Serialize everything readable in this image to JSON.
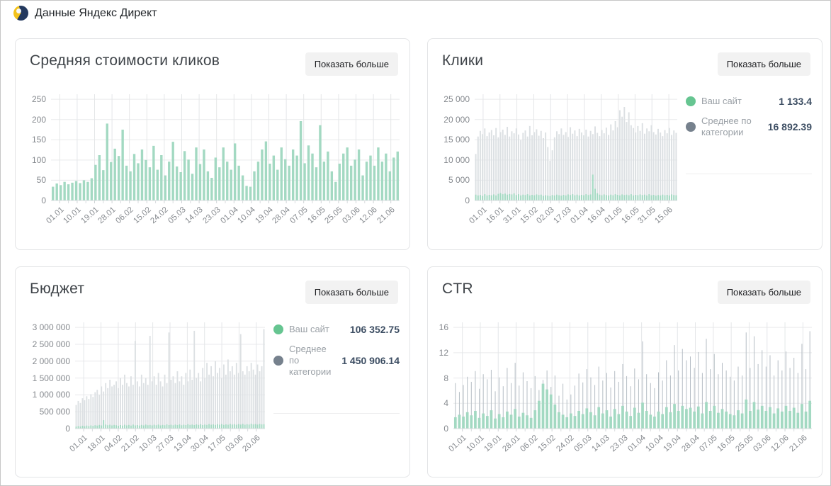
{
  "header": {
    "title": "Данные Яндекс Директ"
  },
  "colors": {
    "site_green_bar": "#a3d9c2",
    "category_gray_bar": "#dce0e3",
    "ctr_gray_bar": "#b6bec5",
    "grid_h": "#e9eaec",
    "grid_v": "#e4e6e8",
    "axis_text": "#85898e",
    "legend_dot_green": "#66c591",
    "legend_dot_gray": "#76818d"
  },
  "panels": [
    {
      "title": "Средняя стоимости кликов",
      "show_more": "Показать больше",
      "chart_data": {
        "type": "bar",
        "title": "Средняя стоимости кликов",
        "x_tick_labels": [
          "01.01",
          "10.01",
          "19.01",
          "28.01",
          "06.02",
          "15.02",
          "24.02",
          "05.03",
          "14.03",
          "23.03",
          "01.04",
          "10.04",
          "19.04",
          "28.04",
          "07.05",
          "16.05",
          "25.05",
          "03.06",
          "12.06",
          "21.06"
        ],
        "ytick_values": [
          0,
          50,
          100,
          150,
          200,
          250
        ],
        "ytick_labels": [
          "0",
          "50",
          "100",
          "150",
          "200",
          "250"
        ],
        "ylim": [
          0,
          250
        ],
        "grid": true,
        "legend_position": "none",
        "series": [
          {
            "name": "Ваш сайт",
            "color": "#a3d9c2",
            "bar_frac": 0.62,
            "values": [
              34,
              42,
              38,
              46,
              40,
              44,
              48,
              43,
              50,
              46,
              55,
              88,
              112,
              75,
              190,
              95,
              128,
              110,
              175,
              86,
              72,
              115,
              92,
              126,
              100,
              82,
              135,
              76,
              112,
              62,
              96,
              145,
              84,
              70,
              122,
              101,
              66,
              131,
              90,
              126,
              72,
              56,
              106,
              82,
              131,
              96,
              76,
              141,
              86,
              62,
              36,
              34,
              72,
              96,
              126,
              146,
              91,
              111,
              76,
              131,
              102,
              86,
              126,
              111,
              196,
              92,
              136,
              116,
              82,
              186,
              96,
              121,
              72,
              46,
              91,
              116,
              131,
              86,
              101,
              126,
              62,
              96,
              111,
              86,
              131,
              96,
              116,
              72,
              106,
              121
            ]
          }
        ]
      }
    },
    {
      "title": "Клики",
      "show_more": "Показать больше",
      "legend": {
        "items": [
          {
            "label": "Ваш сайт",
            "value": "1 133.4",
            "color": "#66c591"
          },
          {
            "label": "Среднее по категории",
            "value": "16 892.39",
            "color": "#76818d"
          }
        ]
      },
      "chart_data": {
        "type": "bar",
        "title": "Клики",
        "x_tick_labels": [
          "01.01",
          "16.01",
          "31.01",
          "15.02",
          "02.03",
          "17.03",
          "01.04",
          "16.04",
          "01.05",
          "16.05",
          "31.05",
          "15.06"
        ],
        "ytick_values": [
          0,
          5000,
          10000,
          15000,
          20000,
          25000
        ],
        "ytick_labels": [
          "0",
          "5 000",
          "10 000",
          "15 000",
          "20 000",
          "25 000"
        ],
        "ylim": [
          0,
          25000
        ],
        "grid": true,
        "legend_position": "right",
        "series": [
          {
            "name": "Среднее по категории",
            "color": "#dce0e3",
            "bar_frac": 0.62,
            "values": [
              11500,
              15800,
              17200,
              16400,
              17800,
              15900,
              16800,
              17400,
              16100,
              17900,
              15600,
              16900,
              17500,
              16200,
              18200,
              15800,
              17100,
              16600,
              17800,
              16300,
              14900,
              16700,
              17300,
              15800,
              18400,
              16100,
              16900,
              17600,
              16000,
              17200,
              15400,
              16800,
              13200,
              9800,
              12400,
              15600,
              17100,
              16400,
              17800,
              16200,
              16900,
              15700,
              18100,
              16500,
              17300,
              15900,
              17700,
              16800,
              16100,
              17500,
              15800,
              17200,
              16400,
              18300,
              16700,
              15900,
              17400,
              16600,
              18000,
              16200,
              18800,
              17300,
              19600,
              18100,
              22300,
              20700,
              23100,
              19400,
              21800,
              18600,
              17900,
              16800,
              18400,
              17200,
              19100,
              16500,
              17800,
              17100,
              18600,
              16900,
              16300,
              17700,
              16800,
              15900,
              17400,
              16600,
              17900,
              16200,
              17300,
              16700
            ]
          },
          {
            "name": "Ваш сайт",
            "color": "#a3d9c2",
            "bar_frac": 0.62,
            "values": [
              1450,
              1250,
              1350,
              1150,
              1550,
              1250,
              1400,
              1300,
              1500,
              1250,
              1650,
              1850,
              1550,
              1700,
              1450,
              1600,
              1500,
              1750,
              1350,
              1550,
              1250,
              1450,
              1350,
              1550,
              1250,
              1400,
              1300,
              1500,
              1350,
              1450,
              1150,
              1300,
              1200,
              1100,
              1350,
              1250,
              1450,
              1300,
              1200,
              1400,
              1250,
              1500,
              1350,
              1550,
              1300,
              1450,
              1250,
              1400,
              1300,
              1550,
              1350,
              1500,
              6400,
              2900,
              1800,
              1450,
              1300,
              1500,
              1350,
              1250,
              1450,
              1300,
              1550,
              1400,
              1250,
              1500,
              1350,
              1450,
              1300,
              1550,
              1250,
              1400,
              1300,
              1500,
              1350,
              1450,
              1250,
              1550,
              1300,
              1400,
              1200,
              1350,
              1250,
              1450,
              1300,
              1400,
              1250,
              1500,
              1350,
              1300
            ]
          }
        ]
      }
    },
    {
      "title": "Бюджет",
      "show_more": "Показать больше",
      "legend": {
        "items": [
          {
            "label": "Ваш сайт",
            "value": "106 352.75",
            "color": "#66c591"
          },
          {
            "label": "Среднее по категории",
            "value": "1 450 906.14",
            "color": "#76818d"
          }
        ]
      },
      "chart_data": {
        "type": "bar",
        "title": "Бюджет",
        "x_tick_labels": [
          "01.01",
          "18.01",
          "04.02",
          "21.02",
          "10.03",
          "27.03",
          "13.04",
          "30.04",
          "17.05",
          "03.06",
          "20.06"
        ],
        "ytick_values": [
          0,
          500000,
          1000000,
          1500000,
          2000000,
          2500000,
          3000000
        ],
        "ytick_labels": [
          "0",
          "500 000",
          "1 000 000",
          "1 500 000",
          "2 000 000",
          "2 500 000",
          "3 000 000"
        ],
        "ylim": [
          0,
          3000000
        ],
        "grid": true,
        "legend_position": "right",
        "series": [
          {
            "name": "Среднее по категории",
            "color": "#dce0e3",
            "bar_frac": 0.62,
            "values": [
              700000,
              820000,
              760000,
              900000,
              840000,
              960000,
              880000,
              1020000,
              940000,
              1080000,
              1150000,
              1000000,
              1250000,
              1100000,
              1350000,
              1200000,
              1450000,
              1250000,
              1300000,
              1400000,
              1200000,
              1500000,
              1300000,
              1600000,
              1350000,
              1250000,
              1550000,
              1300000,
              2600000,
              1400000,
              1250000,
              1600000,
              1350000,
              1500000,
              1300000,
              2750000,
              1400000,
              1550000,
              1300000,
              1650000,
              1400000,
              1250000,
              1600000,
              1350000,
              2850000,
              1450000,
              1550000,
              1350000,
              1700000,
              1400000,
              1550000,
              1300000,
              1650000,
              1400000,
              1750000,
              1450000,
              2900000,
              1500000,
              1650000,
              1400000,
              1800000,
              1500000,
              1950000,
              1600000,
              1850000,
              1550000,
              2000000,
              1650000,
              1800000,
              1500000,
              1900000,
              1600000,
              2050000,
              1700000,
              1850000,
              1600000,
              1950000,
              1650000,
              2800000,
              1700000,
              1600000,
              1850000,
              1700000,
              1950000,
              1750000,
              1600000,
              1900000,
              1700000,
              1850000,
              2950000
            ]
          },
          {
            "name": "Ваш сайт",
            "color": "#a3d9c2",
            "bar_frac": 0.62,
            "values": [
              60000,
              75000,
              65000,
              85000,
              70000,
              90000,
              75000,
              95000,
              80000,
              100000,
              90000,
              110000,
              95000,
              250000,
              120000,
              100000,
              115000,
              95000,
              110000,
              100000,
              85000,
              105000,
              90000,
              115000,
              95000,
              110000,
              90000,
              120000,
              95000,
              105000,
              90000,
              110000,
              95000,
              120000,
              100000,
              110000,
              95000,
              115000,
              100000,
              120000,
              95000,
              110000,
              100000,
              125000,
              105000,
              115000,
              100000,
              120000,
              105000,
              125000,
              100000,
              115000,
              105000,
              130000,
              110000,
              120000,
              105000,
              125000,
              110000,
              130000,
              105000,
              120000,
              110000,
              135000,
              115000,
              125000,
              110000,
              130000,
              115000,
              135000,
              110000,
              125000,
              115000,
              140000,
              120000,
              130000,
              115000,
              135000,
              120000,
              140000,
              115000,
              130000,
              120000,
              145000,
              125000,
              135000,
              120000,
              140000,
              125000,
              130000
            ]
          }
        ]
      }
    },
    {
      "title": "CTR",
      "show_more": "Показать больше",
      "chart_data": {
        "type": "bar",
        "title": "CTR",
        "x_tick_labels": [
          "01.01",
          "10.01",
          "19.01",
          "28.01",
          "06.02",
          "15.02",
          "24.02",
          "05.03",
          "14.03",
          "23.03",
          "01.04",
          "10.04",
          "19.04",
          "28.04",
          "07.05",
          "16.05",
          "25.05",
          "03.06",
          "12.06",
          "21.06"
        ],
        "ytick_values": [
          0,
          4,
          8,
          12,
          16
        ],
        "ytick_labels": [
          "0",
          "4",
          "8",
          "12",
          "16"
        ],
        "ylim": [
          0,
          16
        ],
        "grid": true,
        "legend_position": "none",
        "series": [
          {
            "name": "Среднее по категории",
            "color": "#b6bec5",
            "bar_frac": 0.18,
            "values": [
              7.2,
              5.8,
              6.9,
              8.2,
              7.4,
              9.1,
              6.3,
              8.6,
              7.8,
              9.3,
              5.9,
              8.1,
              6.7,
              9.6,
              7.2,
              10.4,
              6.8,
              8.9,
              7.5,
              6.4,
              8.3,
              6.1,
              7.7,
              9.2,
              6.6,
              8.4,
              5.2,
              7.1,
              4.6,
              5.4,
              6.8,
              8.7,
              7.3,
              9.4,
              8.1,
              6.9,
              9.8,
              7.6,
              8.8,
              6.5,
              9.1,
              7.4,
              10.2,
              8.3,
              6.7,
              9.5,
              7.8,
              13.8,
              8.6,
              7.2,
              6.4,
              8.9,
              7.6,
              10.8,
              8.4,
              13.2,
              9.2,
              12.6,
              10.8,
              11.4,
              9.6,
              12.1,
              8.8,
              14.2,
              9.4,
              11.8,
              8.6,
              10.4,
              9.2,
              8.2,
              7.6,
              9.8,
              8.4,
              15.2,
              9.6,
              14.6,
              10.2,
              12.4,
              9.8,
              11.6,
              8.4,
              10.8,
              9.2,
              12.2,
              9.6,
              11.2,
              8.8,
              13.4,
              9.4,
              15.4
            ]
          },
          {
            "name": "Ваш сайт",
            "color": "#a3d9c2",
            "bar_frac": 0.66,
            "values": [
              1.8,
              2.2,
              1.9,
              2.6,
              2.1,
              2.8,
              1.7,
              2.4,
              2.0,
              2.9,
              1.6,
              2.3,
              1.8,
              2.7,
              2.2,
              3.1,
              1.9,
              2.5,
              2.1,
              1.7,
              2.9,
              4.4,
              7.1,
              6.2,
              5.4,
              3.8,
              2.6,
              2.2,
              1.8,
              2.4,
              2.0,
              2.8,
              2.3,
              3.2,
              2.6,
              2.1,
              3.4,
              2.4,
              2.9,
              1.9,
              3.1,
              2.3,
              3.6,
              2.7,
              2.0,
              3.3,
              2.5,
              4.1,
              2.8,
              2.2,
              1.9,
              2.7,
              2.3,
              3.4,
              2.6,
              3.9,
              2.8,
              3.6,
              3.1,
              3.3,
              2.7,
              3.5,
              2.4,
              4.2,
              2.8,
              3.6,
              2.5,
              3.1,
              2.7,
              2.3,
              2.1,
              2.9,
              2.4,
              4.6,
              2.8,
              4.2,
              3.0,
              3.6,
              2.8,
              3.4,
              2.4,
              3.2,
              2.7,
              3.6,
              2.8,
              3.3,
              2.5,
              3.9,
              2.7,
              4.4
            ]
          }
        ]
      }
    }
  ]
}
